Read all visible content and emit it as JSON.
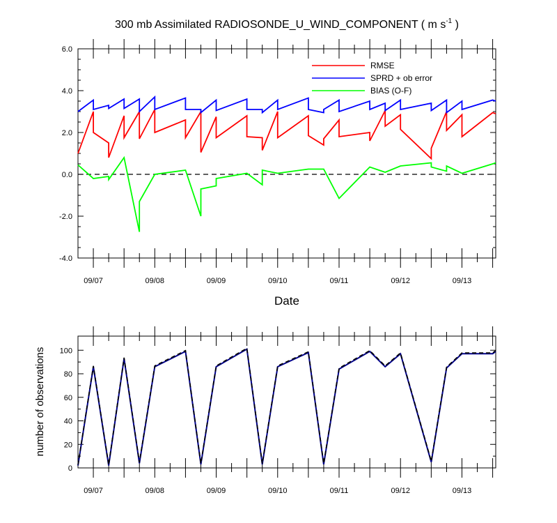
{
  "colors": {
    "rmse": "#ff0000",
    "sprd": "#0000ff",
    "bias": "#00ff00",
    "zero_line": "#000000",
    "count_solid": "#00008b",
    "count_dashed": "#000000"
  },
  "chart_data": [
    {
      "type": "line",
      "title_main": "300 mb Assimilated RADIOSONDE_U_WIND_COMPONENT ( m s",
      "title_sup": "-1",
      "title_end": " )",
      "xlabel": "Date",
      "ylabel": "",
      "xlim": [
        0,
        6.8
      ],
      "ylim": [
        -4,
        6
      ],
      "yticks": [
        6,
        4,
        2,
        0,
        -2,
        -4
      ],
      "ytick_labels": [
        "6.0",
        "4.0",
        "2.0",
        "0.0",
        "-2.0",
        "-4.0"
      ],
      "date_ticks": [
        0.25,
        1.25,
        2.25,
        3.25,
        4.25,
        5.25,
        6.25
      ],
      "date_labels": [
        "09/07",
        "09/08",
        "09/09",
        "09/10",
        "09/11",
        "09/12",
        "09/13"
      ],
      "zero_line": 0,
      "legend": {
        "position": "top-right",
        "entries": [
          "RMSE",
          "SPRD + ob error",
          "BIAS (O-F)"
        ]
      },
      "series": [
        {
          "name": "RMSE",
          "x": [
            0,
            0.25,
            0.25,
            0.5,
            0.5,
            0.75,
            0.75,
            1.0,
            1.0,
            1.25,
            1.25,
            1.75,
            1.75,
            2.0,
            2.0,
            2.25,
            2.25,
            2.75,
            2.75,
            3.0,
            3.0,
            3.25,
            3.25,
            3.75,
            3.75,
            4.0,
            4.0,
            4.25,
            4.25,
            4.75,
            4.75,
            5.0,
            5.0,
            5.25,
            5.25,
            5.75,
            5.75,
            6.0,
            6.0,
            6.25,
            6.25,
            6.75,
            6.8
          ],
          "values": [
            1.0,
            3.0,
            2.0,
            1.5,
            0.8,
            2.8,
            1.75,
            3.0,
            1.7,
            3.1,
            2.0,
            2.6,
            1.75,
            3.0,
            1.05,
            2.75,
            1.75,
            2.8,
            1.8,
            1.75,
            1.15,
            3.0,
            1.75,
            2.8,
            1.85,
            1.4,
            1.7,
            2.6,
            1.8,
            2.0,
            1.6,
            3.05,
            2.3,
            2.85,
            2.15,
            0.75,
            1.25,
            3.0,
            2.1,
            2.85,
            1.8,
            2.95,
            2.9
          ]
        },
        {
          "name": "SPRD + ob error",
          "x": [
            0,
            0.25,
            0.25,
            0.5,
            0.5,
            0.75,
            0.75,
            1.0,
            1.0,
            1.25,
            1.25,
            1.75,
            1.75,
            2.0,
            2.0,
            2.25,
            2.25,
            2.75,
            2.75,
            3.0,
            3.0,
            3.25,
            3.25,
            3.75,
            3.75,
            4.0,
            4.0,
            4.25,
            4.25,
            4.75,
            4.75,
            5.0,
            5.0,
            5.25,
            5.25,
            5.75,
            5.75,
            6.0,
            6.0,
            6.25,
            6.25,
            6.75,
            6.8
          ],
          "values": [
            3.0,
            3.55,
            3.1,
            3.3,
            3.15,
            3.6,
            3.15,
            3.6,
            3.0,
            3.7,
            3.1,
            3.65,
            3.1,
            3.1,
            2.95,
            3.55,
            3.05,
            3.6,
            3.1,
            3.1,
            2.95,
            3.55,
            3.1,
            3.65,
            3.1,
            2.95,
            3.1,
            3.55,
            3.0,
            3.5,
            3.1,
            3.4,
            3.05,
            3.55,
            3.1,
            3.4,
            3.05,
            3.55,
            2.95,
            3.5,
            3.1,
            3.55,
            3.5
          ]
        },
        {
          "name": "BIAS (O-F)",
          "x": [
            0,
            0.25,
            0.5,
            0.5,
            0.75,
            1.0,
            1.0,
            1.25,
            1.75,
            2.0,
            2.0,
            2.25,
            2.25,
            2.75,
            3.0,
            3.0,
            3.25,
            3.75,
            4.0,
            4.0,
            4.25,
            4.75,
            5.0,
            5.25,
            5.75,
            5.75,
            6.0,
            6.0,
            6.25,
            6.75,
            6.8
          ],
          "values": [
            0.45,
            -0.2,
            -0.1,
            -0.25,
            0.8,
            -2.75,
            -1.3,
            0.0,
            0.2,
            -2.0,
            -0.7,
            -0.55,
            -0.2,
            0.05,
            -0.5,
            0.2,
            0.05,
            0.25,
            0.25,
            0.25,
            -1.15,
            0.35,
            0.1,
            0.4,
            0.55,
            0.35,
            0.15,
            0.4,
            0.05,
            0.5,
            0.55
          ]
        }
      ]
    },
    {
      "type": "line",
      "ylabel": "number of observations",
      "xlim": [
        0,
        6.8
      ],
      "ylim": [
        0,
        112
      ],
      "yticks": [
        100,
        80,
        60,
        40,
        20,
        0
      ],
      "ytick_labels": [
        "100",
        "80",
        "60",
        "40",
        "20",
        "0"
      ],
      "date_ticks": [
        0.25,
        1.25,
        2.25,
        3.25,
        4.25,
        5.25,
        6.25
      ],
      "date_labels": [
        "09/07",
        "09/08",
        "09/09",
        "09/10",
        "09/11",
        "09/12",
        "09/13"
      ],
      "series": [
        {
          "name": "observations",
          "x": [
            0,
            0.25,
            0.5,
            0.75,
            1.0,
            1.25,
            1.75,
            2.0,
            2.25,
            2.75,
            3.0,
            3.25,
            3.75,
            4.0,
            4.25,
            4.75,
            5.0,
            5.25,
            5.75,
            6.0,
            6.25,
            6.75,
            6.8
          ],
          "values": [
            2,
            86,
            2,
            93,
            4,
            86,
            99,
            3,
            86,
            101,
            3,
            86,
            98,
            3,
            84,
            99,
            86,
            97,
            5,
            85,
            97,
            97,
            99
          ]
        }
      ]
    }
  ]
}
